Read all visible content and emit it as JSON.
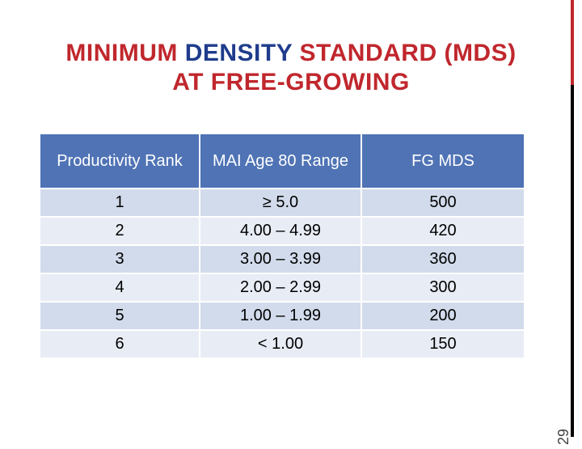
{
  "title": {
    "line1_part1": "MINIMUM ",
    "line1_part2": "DENSITY",
    "line1_part3": " STANDARD (MDS)",
    "line2": "AT FREE-GROWING"
  },
  "table": {
    "headers": [
      "Productivity Rank",
      "MAI Age 80 Range",
      "FG  MDS"
    ],
    "rows": [
      [
        "1",
        "≥ 5.0",
        "500"
      ],
      [
        "2",
        "4.00 – 4.99",
        "420"
      ],
      [
        "3",
        "3.00 – 3.99",
        "360"
      ],
      [
        "4",
        "2.00 – 2.99",
        "300"
      ],
      [
        "5",
        "1.00 – 1.99",
        "200"
      ],
      [
        "6",
        "< 1.00",
        "150"
      ]
    ]
  },
  "page_number": "29",
  "colors": {
    "title_red": "#c0272d",
    "title_blue": "#1f3c8c",
    "header_bg": "#4f73b5",
    "row_dark": "#d2dbeb",
    "row_light": "#e8ecf5"
  }
}
